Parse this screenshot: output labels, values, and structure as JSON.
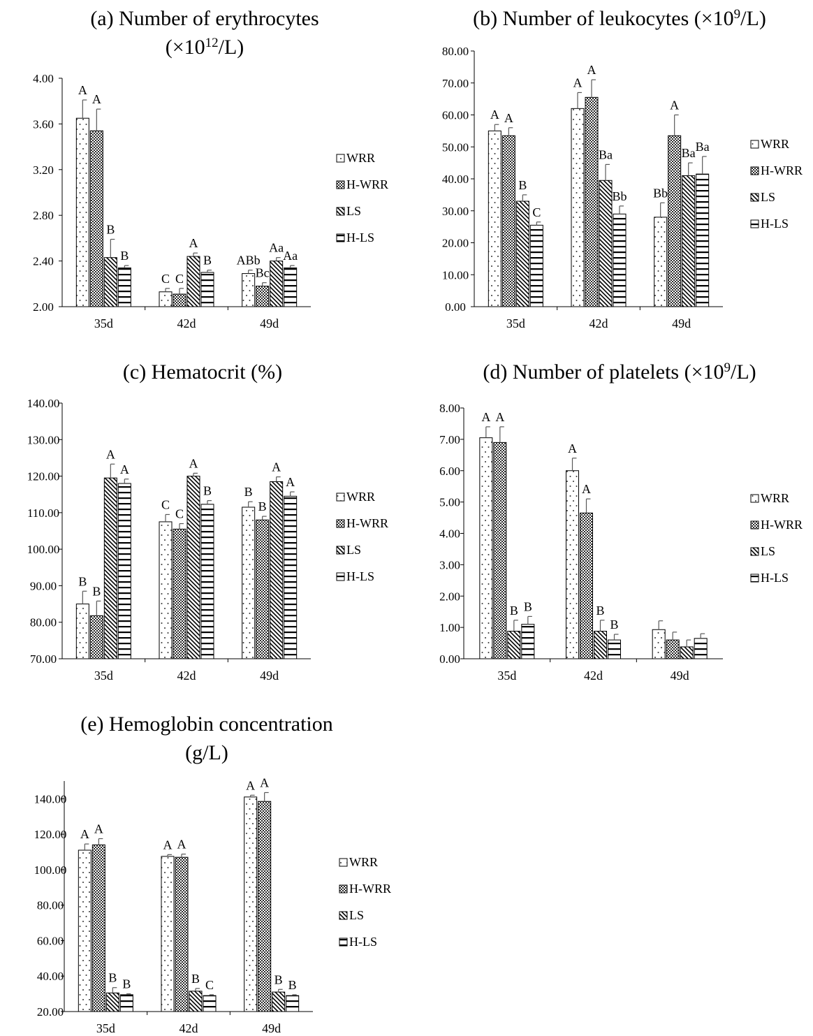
{
  "figure": {
    "patterns": [
      {
        "key": "dots",
        "series": "WRR",
        "fill": "#ffffff",
        "mark": "#333333"
      },
      {
        "key": "checks",
        "series": "H-WRR",
        "fill": "#ffffff",
        "mark": "#2b2b2b"
      },
      {
        "key": "diag",
        "series": "LS",
        "fill": "#ffffff",
        "mark": "#000000"
      },
      {
        "key": "horiz",
        "series": "H-LS",
        "fill": "#ffffff",
        "mark": "#000000"
      }
    ],
    "axis_color": "#000000",
    "error_bar_color": "#595959"
  },
  "chart_data": [
    {
      "type": "bar",
      "title_lines": [
        "(a) Number of erythrocytes",
        "(×10",
        "12",
        "/L)"
      ],
      "categories": [
        "35d",
        "42d",
        "49d"
      ],
      "ylim": [
        2.0,
        4.0
      ],
      "yticks": [
        "2.00",
        "2.40",
        "2.80",
        "3.20",
        "3.60",
        "4.00"
      ],
      "grid": false,
      "legend_position": "right",
      "series": [
        {
          "name": "WRR",
          "values": [
            3.65,
            2.13,
            2.29
          ],
          "errors": [
            0.16,
            0.03,
            0.03
          ],
          "letters": [
            "A",
            "C",
            "ABb"
          ]
        },
        {
          "name": "H-WRR",
          "values": [
            3.54,
            2.11,
            2.18
          ],
          "errors": [
            0.19,
            0.05,
            0.03
          ],
          "letters": [
            "A",
            "C",
            "Bc"
          ]
        },
        {
          "name": "LS",
          "values": [
            2.43,
            2.44,
            2.4
          ],
          "errors": [
            0.16,
            0.03,
            0.03
          ],
          "letters": [
            "B",
            "A",
            "Aa"
          ]
        },
        {
          "name": "H-LS",
          "values": [
            2.34,
            2.3,
            2.34
          ],
          "errors": [
            0.02,
            0.02,
            0.02
          ],
          "letters": [
            "B",
            "B",
            "Aa"
          ]
        }
      ]
    },
    {
      "type": "bar",
      "title_lines": [
        "(b) Number of leukocytes (×10",
        "9",
        "/L)"
      ],
      "categories": [
        "35d",
        "42d",
        "49d"
      ],
      "ylim": [
        0,
        80
      ],
      "yticks": [
        "0.00",
        "10.00",
        "20.00",
        "30.00",
        "40.00",
        "50.00",
        "60.00",
        "70.00",
        "80.00"
      ],
      "grid": false,
      "legend_position": "right",
      "series": [
        {
          "name": "WRR",
          "values": [
            55.0,
            62.0,
            28.0
          ],
          "errors": [
            2.0,
            5.0,
            4.5
          ],
          "letters": [
            "A",
            "A",
            "Bb"
          ]
        },
        {
          "name": "H-WRR",
          "values": [
            53.5,
            65.5,
            53.5
          ],
          "errors": [
            2.5,
            5.5,
            6.5
          ],
          "letters": [
            "A",
            "A",
            "A"
          ]
        },
        {
          "name": "LS",
          "values": [
            33.0,
            39.5,
            41.0
          ],
          "errors": [
            2.0,
            5.0,
            4.0
          ],
          "letters": [
            "B",
            "Ba",
            "Ba"
          ]
        },
        {
          "name": "H-LS",
          "values": [
            25.5,
            29.0,
            41.5
          ],
          "errors": [
            1.0,
            2.5,
            5.5
          ],
          "letters": [
            "C",
            "Bb",
            "Ba"
          ]
        }
      ]
    },
    {
      "type": "bar",
      "title_lines": [
        "(c) Hematocrit (%)"
      ],
      "categories": [
        "35d",
        "42d",
        "49d"
      ],
      "ylim": [
        70,
        140
      ],
      "yticks": [
        "70.00",
        "80.00",
        "90.00",
        "100.00",
        "110.00",
        "120.00",
        "130.00",
        "140.00"
      ],
      "grid": false,
      "legend_position": "right",
      "series": [
        {
          "name": "WRR",
          "values": [
            85.0,
            107.5,
            111.5
          ],
          "errors": [
            3.5,
            2.0,
            1.5
          ],
          "letters": [
            "B",
            "C",
            "B"
          ]
        },
        {
          "name": "H-WRR",
          "values": [
            81.8,
            105.5,
            108.0
          ],
          "errors": [
            4.0,
            1.5,
            1.0
          ],
          "letters": [
            "B",
            "C",
            "B"
          ]
        },
        {
          "name": "LS",
          "values": [
            119.5,
            120.0,
            118.5
          ],
          "errors": [
            3.8,
            0.8,
            1.3
          ],
          "letters": [
            "A",
            "A",
            "A"
          ]
        },
        {
          "name": "H-LS",
          "values": [
            118.0,
            112.3,
            114.5
          ],
          "errors": [
            1.2,
            1.0,
            1.2
          ],
          "letters": [
            "A",
            "B",
            "A"
          ]
        }
      ]
    },
    {
      "type": "bar",
      "title_lines": [
        "(d) Number of platelets (",
        "×",
        "10",
        "9",
        "/L)"
      ],
      "categories": [
        "35d",
        "42d",
        "49d"
      ],
      "ylim": [
        0,
        8
      ],
      "yticks": [
        "0.00",
        "1.00",
        "2.00",
        "3.00",
        "4.00",
        "5.00",
        "6.00",
        "7.00",
        "8.00"
      ],
      "grid": false,
      "legend_position": "right",
      "series": [
        {
          "name": "WRR",
          "values": [
            7.05,
            6.0,
            0.93
          ],
          "errors": [
            0.35,
            0.4,
            0.28
          ],
          "letters": [
            "A",
            "A",
            ""
          ]
        },
        {
          "name": "H-WRR",
          "values": [
            6.9,
            4.65,
            0.6
          ],
          "errors": [
            0.5,
            0.45,
            0.25
          ],
          "letters": [
            "A",
            "A",
            ""
          ]
        },
        {
          "name": "LS",
          "values": [
            0.88,
            0.88,
            0.38
          ],
          "errors": [
            0.35,
            0.35,
            0.22
          ],
          "letters": [
            "B",
            "B",
            ""
          ]
        },
        {
          "name": "H-LS",
          "values": [
            1.1,
            0.6,
            0.65
          ],
          "errors": [
            0.25,
            0.18,
            0.15
          ],
          "letters": [
            "B",
            "B",
            ""
          ]
        }
      ]
    },
    {
      "type": "bar",
      "title_lines": [
        "(e) Hemoglobin concentration",
        "(g/L)"
      ],
      "categories": [
        "35d",
        "42d",
        "49d"
      ],
      "ylim": [
        20,
        150
      ],
      "yticks": [
        "20.00",
        "40.00",
        "60.00",
        "80.00",
        "100.00",
        "120.00",
        "140.00"
      ],
      "grid": false,
      "legend_position": "right",
      "series": [
        {
          "name": "WRR",
          "values": [
            111.0,
            107.5,
            141.0
          ],
          "errors": [
            3.5,
            1.0,
            1.0
          ],
          "letters": [
            "A",
            "A",
            "A"
          ]
        },
        {
          "name": "H-WRR",
          "values": [
            114.0,
            107.0,
            138.5
          ],
          "errors": [
            3.5,
            1.8,
            5.0
          ],
          "letters": [
            "A",
            "A",
            "A"
          ]
        },
        {
          "name": "LS",
          "values": [
            30.5,
            31.5,
            31.0
          ],
          "errors": [
            3.0,
            1.5,
            1.5
          ],
          "letters": [
            "B",
            "B",
            "B"
          ]
        },
        {
          "name": "H-LS",
          "values": [
            29.5,
            29.0,
            29.0
          ],
          "errors": [
            0.5,
            0.5,
            0.5
          ],
          "letters": [
            "B",
            "C",
            "B"
          ]
        }
      ]
    }
  ]
}
